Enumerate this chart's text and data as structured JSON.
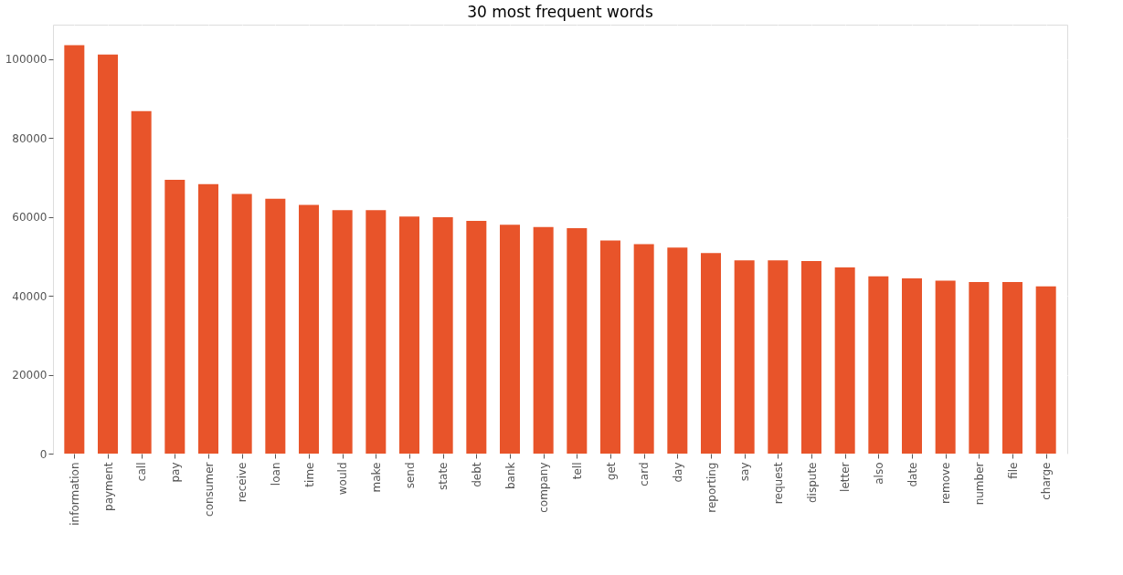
{
  "chart_data": {
    "type": "bar",
    "title": "30 most frequent words",
    "categories": [
      "information",
      "payment",
      "call",
      "pay",
      "consumer",
      "receive",
      "loan",
      "time",
      "would",
      "make",
      "send",
      "state",
      "debt",
      "bank",
      "company",
      "tell",
      "get",
      "card",
      "day",
      "reporting",
      "say",
      "request",
      "dispute",
      "letter",
      "also",
      "date",
      "remove",
      "number",
      "file",
      "charge"
    ],
    "values": [
      103500,
      101100,
      86800,
      69400,
      68300,
      65800,
      64600,
      63000,
      61700,
      61700,
      60100,
      59900,
      59000,
      58000,
      57400,
      57100,
      54000,
      53100,
      52200,
      50800,
      49000,
      49000,
      48800,
      47200,
      44900,
      44400,
      43800,
      43500,
      43500,
      42400
    ],
    "color": "#e8542a",
    "ylim": [
      0,
      108700
    ],
    "yticks": [
      0,
      20000,
      40000,
      60000,
      80000,
      100000
    ],
    "grid": true
  }
}
